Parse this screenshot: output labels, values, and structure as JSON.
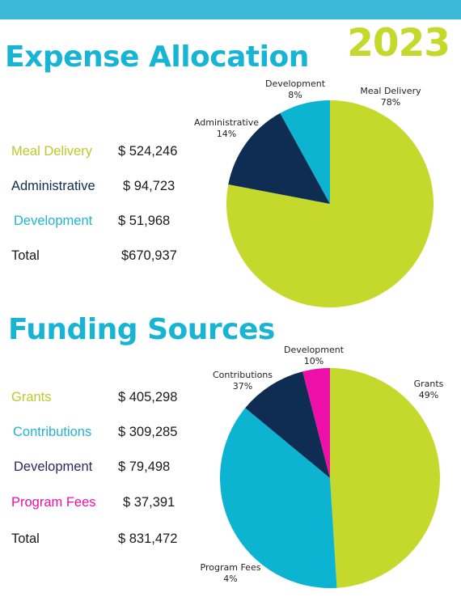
{
  "header": {
    "year": "2023"
  },
  "colors": {
    "topbar": "#3cb8d8",
    "title": "#18b4d4",
    "year": "#c5d92d",
    "lime": "#c5d92d",
    "navy": "#0f2d52",
    "cyan": "#0db4d2",
    "magenta": "#ee0fa8"
  },
  "expense": {
    "title": "Expense Allocation",
    "rows": [
      {
        "label": "Meal Delivery",
        "amount": "$ 524,246",
        "color": "#b8cc2a"
      },
      {
        "label": "Administrative",
        "amount": "$ 94,723",
        "color": "#0f2d52"
      },
      {
        "label": "Development",
        "amount": "$ 51,968",
        "color": "#22b4d2"
      }
    ],
    "total": {
      "label": "Total",
      "amount": "$670,937"
    }
  },
  "funding": {
    "title": "Funding Sources",
    "rows": [
      {
        "label": "Grants",
        "amount": "$ 405,298",
        "color": "#b8cc2a"
      },
      {
        "label": "Contributions",
        "amount": "$ 309,285",
        "color": "#22b4d2"
      },
      {
        "label": "Development",
        "amount": "$ 79,498",
        "color": "#2a2a5c"
      },
      {
        "label": "Program Fees",
        "amount": "$ 37,391",
        "color": "#ee0fa8"
      }
    ],
    "total": {
      "label": "Total",
      "amount": "$ 831,472"
    }
  },
  "chart_data": [
    {
      "type": "pie",
      "title": "Expense Allocation",
      "categories": [
        "Meal Delivery",
        "Administrative",
        "Development"
      ],
      "values": [
        78,
        14,
        8
      ],
      "amounts": [
        524246,
        94723,
        51968
      ],
      "slice_labels": [
        {
          "name": "Meal Delivery",
          "pct": "78%"
        },
        {
          "name": "Administrative",
          "pct": "14%"
        },
        {
          "name": "Development",
          "pct": "8%"
        }
      ],
      "colors": [
        "#c5d92d",
        "#0f2d52",
        "#0db4d2"
      ],
      "start": "12 o'clock",
      "direction": "clockwise"
    },
    {
      "type": "pie",
      "title": "Funding Sources",
      "categories": [
        "Grants",
        "Contributions",
        "Development",
        "Program Fees"
      ],
      "values": [
        49,
        37,
        10,
        4
      ],
      "amounts": [
        405298,
        309285,
        79498,
        37391
      ],
      "slice_labels": [
        {
          "name": "Grants",
          "pct": "49%"
        },
        {
          "name": "Contributions",
          "pct": "37%"
        },
        {
          "name": "Development",
          "pct": "10%"
        },
        {
          "name": "Program Fees",
          "pct": "4%"
        }
      ],
      "colors": [
        "#c5d92d",
        "#0db4d2",
        "#0f2d52",
        "#ee0fa8"
      ],
      "start": "12 o'clock",
      "direction": "clockwise"
    }
  ]
}
